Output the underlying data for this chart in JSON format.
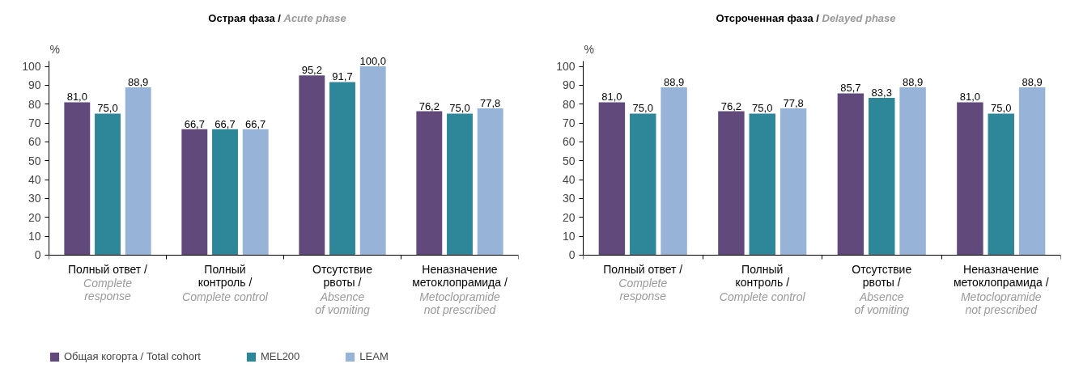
{
  "chart_data": [
    {
      "type": "bar",
      "title": "Острая фаза / Acute phase",
      "ylabel": "%",
      "categories": [
        "Полный ответ /\nComplete\nresponse",
        "Полный\nконтроль /\nComplete control",
        "Отсутствие\nрвоты /\nAbsence\nof vomiting",
        "Неназначение\nметоклопрамида /\nMetoclopramide\nnot prescribed"
      ],
      "series": [
        {
          "name": "Общая когорта / Total cohort",
          "color": "#614a7b",
          "values": [
            81.0,
            66.7,
            95.2,
            76.2
          ],
          "value_labels": [
            "81,0",
            "66,7",
            "95,2",
            "76,2"
          ]
        },
        {
          "name": "MEL200",
          "color": "#2e8699",
          "values": [
            75.0,
            66.7,
            91.7,
            75.0
          ],
          "value_labels": [
            "75,0",
            "66,7",
            "91,7",
            "75,0"
          ]
        },
        {
          "name": "LEAM",
          "color": "#97b4d8",
          "values": [
            88.9,
            66.7,
            100.0,
            77.8
          ],
          "value_labels": [
            "88,9",
            "66,7",
            "100,0",
            "77,8"
          ]
        }
      ],
      "ylim": [
        0,
        103
      ],
      "yticks": [
        0,
        10,
        20,
        30,
        40,
        50,
        60,
        70,
        80,
        90,
        100
      ],
      "grid": false,
      "legend": "bottom"
    },
    {
      "type": "bar",
      "title": "Отсроченная фаза / Delayed phase",
      "ylabel": "%",
      "categories": [
        "Полный ответ /\nComplete\nresponse",
        "Полный\nконтроль /\nComplete control",
        "Отсутствие\nрвоты /\nAbsence\nof vomiting",
        "Неназначение\nметоклопрамида /\nMetoclopramide\nnot prescribed"
      ],
      "series": [
        {
          "color": "#614a7b",
          "values": [
            81.0,
            76.2,
            85.7,
            81.0
          ],
          "value_labels": [
            "81,0",
            "76,2",
            "85,7",
            "81,0"
          ]
        },
        {
          "color": "#2e8699",
          "values": [
            75.0,
            75.0,
            83.3,
            75.0
          ],
          "value_labels": [
            "75,0",
            "75,0",
            "83,3",
            "75,0"
          ]
        },
        {
          "color": "#97b4d8",
          "values": [
            88.9,
            77.8,
            88.9,
            88.9
          ],
          "value_labels": [
            "88,9",
            "77,8",
            "88,9",
            "88,9"
          ]
        }
      ],
      "ylim": [
        0,
        103
      ],
      "yticks": [
        0,
        10,
        20,
        30,
        40,
        50,
        60,
        70,
        80,
        90,
        100
      ],
      "grid": false
    }
  ]
}
